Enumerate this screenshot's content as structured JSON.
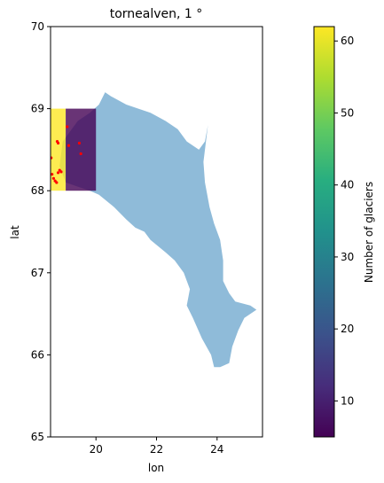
{
  "chart_data": {
    "type": "heatmap",
    "title": "tornealven, 1 °",
    "xlabel": "lon",
    "ylabel": "lat",
    "xlim": [
      18.5,
      25.5
    ],
    "ylim": [
      65,
      70
    ],
    "xticks": [
      "20",
      "22",
      "24"
    ],
    "xtick_values": [
      20,
      22,
      24
    ],
    "yticks": [
      "65",
      "66",
      "67",
      "68",
      "69",
      "70"
    ],
    "ytick_values": [
      65,
      66,
      67,
      68,
      69,
      70
    ],
    "grid": false,
    "cells": [
      {
        "lon": [
          18.0,
          19.0
        ],
        "lat": [
          68,
          69
        ],
        "glaciers": 62
      },
      {
        "lon": [
          19.0,
          20.0
        ],
        "lat": [
          68,
          69
        ],
        "glaciers": 5
      }
    ],
    "basin_polygon": [
      [
        20.3,
        69.2
      ],
      [
        20.5,
        69.15
      ],
      [
        21.0,
        69.05
      ],
      [
        21.4,
        69.0
      ],
      [
        21.8,
        68.95
      ],
      [
        22.3,
        68.85
      ],
      [
        22.7,
        68.75
      ],
      [
        23.0,
        68.6
      ],
      [
        23.4,
        68.5
      ],
      [
        23.6,
        68.6
      ],
      [
        23.7,
        68.8
      ],
      [
        23.55,
        68.35
      ],
      [
        23.6,
        68.1
      ],
      [
        23.75,
        67.8
      ],
      [
        23.9,
        67.6
      ],
      [
        24.1,
        67.4
      ],
      [
        24.2,
        67.15
      ],
      [
        24.2,
        66.9
      ],
      [
        24.4,
        66.75
      ],
      [
        24.6,
        66.65
      ],
      [
        25.1,
        66.6
      ],
      [
        25.3,
        66.55
      ],
      [
        24.9,
        66.45
      ],
      [
        24.7,
        66.3
      ],
      [
        24.5,
        66.1
      ],
      [
        24.4,
        65.9
      ],
      [
        24.1,
        65.85
      ],
      [
        23.9,
        65.85
      ],
      [
        23.8,
        66.0
      ],
      [
        23.5,
        66.2
      ],
      [
        23.2,
        66.45
      ],
      [
        23.0,
        66.6
      ],
      [
        23.1,
        66.8
      ],
      [
        22.9,
        67.0
      ],
      [
        22.6,
        67.15
      ],
      [
        22.3,
        67.25
      ],
      [
        21.8,
        67.4
      ],
      [
        21.6,
        67.5
      ],
      [
        21.3,
        67.55
      ],
      [
        21.0,
        67.65
      ],
      [
        20.6,
        67.8
      ],
      [
        20.1,
        67.95
      ],
      [
        19.8,
        68.0
      ],
      [
        19.4,
        68.05
      ],
      [
        19.0,
        68.1
      ],
      [
        18.8,
        68.3
      ],
      [
        18.9,
        68.6
      ],
      [
        19.4,
        68.85
      ],
      [
        19.8,
        68.95
      ],
      [
        20.1,
        69.05
      ]
    ],
    "glacier_points": [
      [
        18.52,
        68.4
      ],
      [
        18.55,
        68.2
      ],
      [
        18.6,
        68.15
      ],
      [
        18.65,
        68.12
      ],
      [
        18.7,
        68.1
      ],
      [
        18.75,
        68.22
      ],
      [
        18.8,
        68.25
      ],
      [
        18.85,
        68.23
      ],
      [
        18.72,
        68.6
      ],
      [
        18.75,
        68.58
      ],
      [
        19.05,
        68.78
      ],
      [
        19.1,
        68.55
      ],
      [
        19.45,
        68.58
      ],
      [
        19.5,
        68.45
      ]
    ],
    "colorbar": {
      "label": "Number of glaciers",
      "min": 5,
      "max": 62,
      "ticks": [
        "10",
        "20",
        "30",
        "40",
        "50",
        "60"
      ],
      "tick_values": [
        10,
        20,
        30,
        40,
        50,
        60
      ],
      "colormap": "viridis"
    },
    "colors": {
      "basin": "#8fbbd9",
      "glacier_point": "#ff0000",
      "cell_high": "#fde725",
      "cell_low": "#440154"
    }
  }
}
